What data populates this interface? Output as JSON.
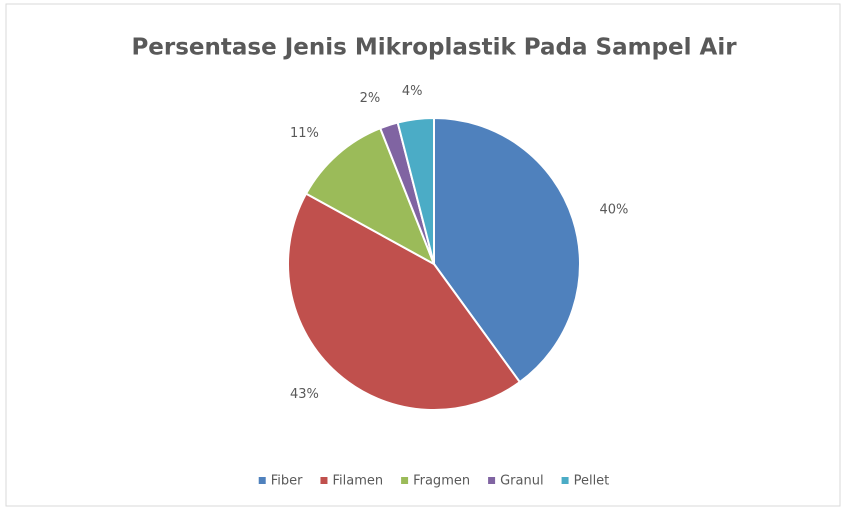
{
  "chart_data": {
    "type": "pie",
    "title": "Persentase Jenis Mikroplastik Pada Sampel Air",
    "categories": [
      "Fiber",
      "Filamen",
      "Fragmen",
      "Granul",
      "Pellet"
    ],
    "values": [
      40,
      43,
      11,
      2,
      4
    ],
    "value_labels": [
      "40%",
      "43%",
      "11%",
      "2%",
      "4%"
    ],
    "colors": [
      "#4f81bd",
      "#c0504d",
      "#9bbb59",
      "#8064a2",
      "#4bacc6"
    ],
    "legend": "bottom"
  }
}
